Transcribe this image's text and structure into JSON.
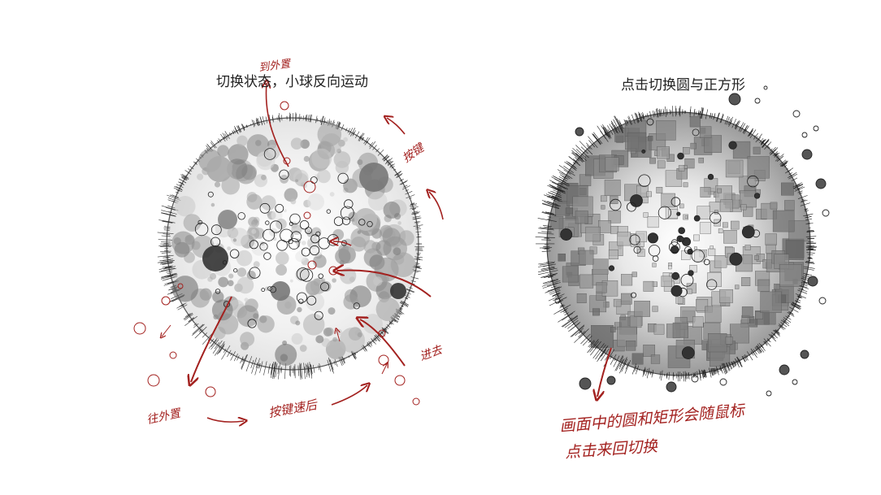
{
  "left_panel": {
    "title": "切换状态，小球反向运动",
    "annotations": {
      "top": "到外置",
      "upper_right": "按键",
      "right": "进去",
      "bottom_left": "往外置",
      "bottom": "按键速后"
    }
  },
  "right_panel": {
    "title": "点击切换圆与正方形",
    "notes": {
      "line1": "画面中的圆和矩形会随鼠标",
      "line2": "点击来回切换"
    }
  },
  "colors": {
    "ink": "#222222",
    "annotation": "#a3211f",
    "sphere_fill": "#f4f4f4"
  }
}
